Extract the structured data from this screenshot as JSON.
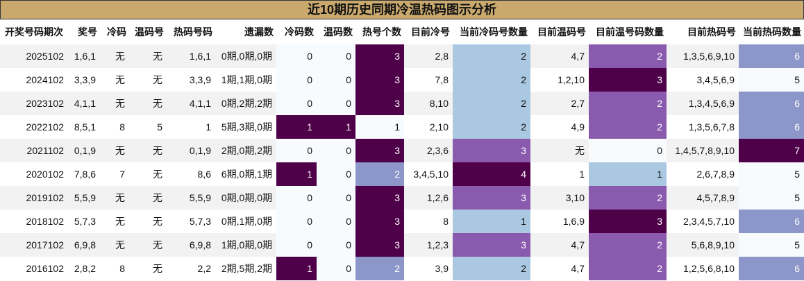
{
  "title": "近10期历史同期冷温热码图示分析",
  "headers": [
    "开奖号码期次",
    "奖号",
    "冷码",
    "温码号",
    "热码号码",
    "遗漏数",
    "冷码数",
    "温码数",
    "热号个数",
    "目前冷号",
    "当前冷码号数量",
    "目前温码号",
    "目前温号码数量",
    "目前热码号",
    "当前热码数量"
  ],
  "rows": [
    [
      "2025102",
      "1,6,1",
      "无",
      "无",
      "1,6,1",
      "0期,0期,0期",
      "0",
      "0",
      "3",
      "2,8",
      "2",
      "4,7",
      "2",
      "1,3,5,6,9,10",
      "6"
    ],
    [
      "2024102",
      "3,3,9",
      "无",
      "无",
      "3,3,9",
      "1期,1期,0期",
      "0",
      "0",
      "3",
      "7,8",
      "2",
      "1,2,10",
      "3",
      "3,4,5,6,9",
      "5"
    ],
    [
      "2023102",
      "4,1,1",
      "无",
      "无",
      "4,1,1",
      "0期,2期,2期",
      "0",
      "0",
      "3",
      "8,10",
      "2",
      "2,7",
      "2",
      "1,3,4,5,6,9",
      "6"
    ],
    [
      "2022102",
      "8,5,1",
      "8",
      "5",
      "1",
      "5期,3期,0期",
      "1",
      "1",
      "1",
      "2,10",
      "2",
      "4,9",
      "2",
      "1,3,5,6,7,8",
      "6"
    ],
    [
      "2021102",
      "0,1,9",
      "无",
      "无",
      "0,1,9",
      "2期,0期,2期",
      "0",
      "0",
      "3",
      "2,3,6",
      "3",
      "无",
      "0",
      "1,4,5,7,8,9,10",
      "7"
    ],
    [
      "2020102",
      "7,8,6",
      "7",
      "无",
      "8,6",
      "6期,0期,1期",
      "1",
      "0",
      "2",
      "3,4,5,10",
      "4",
      "1",
      "1",
      "2,6,7,8,9",
      "5"
    ],
    [
      "2019102",
      "5,5,9",
      "无",
      "无",
      "5,5,9",
      "0期,0期,0期",
      "0",
      "0",
      "3",
      "1,2,6",
      "3",
      "3,10",
      "2",
      "4,5,7,8,9",
      "5"
    ],
    [
      "2018102",
      "5,7,3",
      "无",
      "无",
      "5,7,3",
      "0期,1期,0期",
      "0",
      "0",
      "3",
      "8",
      "1",
      "1,6,9",
      "3",
      "2,3,4,5,7,10",
      "6"
    ],
    [
      "2017102",
      "6,9,8",
      "无",
      "无",
      "6,9,8",
      "1期,0期,0期",
      "0",
      "0",
      "3",
      "1,2,3",
      "3",
      "4,7",
      "2",
      "5,6,8,9,10",
      "5"
    ],
    [
      "2016102",
      "2,8,2",
      "8",
      "无",
      "2,2",
      "2期,5期,2期",
      "1",
      "0",
      "2",
      "3,9",
      "2",
      "4,7",
      "2",
      "1,2,5,6,8,10",
      "6"
    ]
  ],
  "heat_colors": {
    "level0": "#f7fbfd",
    "level1": "#aac8e2",
    "level2": "#8d96c8",
    "level3": "#8a5aae",
    "level4": "#4e0048"
  }
}
